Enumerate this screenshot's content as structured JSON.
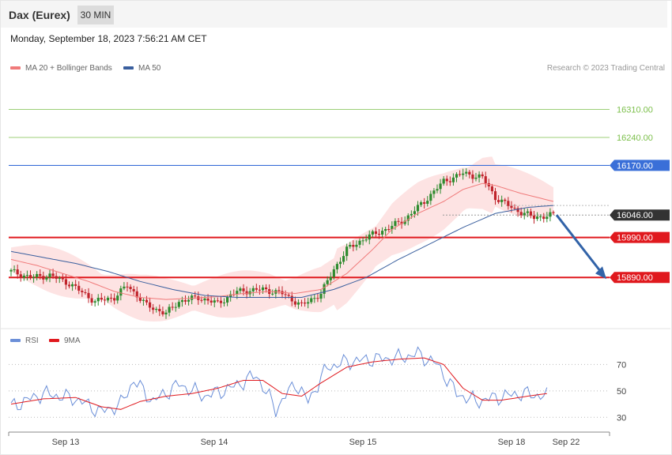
{
  "header": {
    "instrument": "Dax (Eurex)",
    "timeframe": "30 MIN"
  },
  "datetime": "Monday, September 18, 2023 7:56:21 AM CET",
  "legend": {
    "ma20": "MA 20 + Bollinger Bands",
    "ma50": "MA 50",
    "credit": "Research © 2023 Trading Central"
  },
  "colors": {
    "ma20": "#f07a7a",
    "ma50": "#3a5f9e",
    "band_fill": "#fde3e3",
    "bull": "#2e8b2e",
    "bear": "#c0242c",
    "resistance_green": "#7bbf4a",
    "pivot_blue": "#3a6fd8",
    "support_red": "#e0191e",
    "current_dark": "#333333",
    "arrow": "#3263a8",
    "rsi": "#6b8fd8",
    "rsi_ma": "#e0191e"
  },
  "chart_data": [
    {
      "type": "candlestick",
      "title": "Dax (Eurex)",
      "timeframe": "30 MIN",
      "ylim": [
        15770,
        16390
      ],
      "x_labels": [
        "Sep 13",
        "Sep 14",
        "Sep 15",
        "Sep 18",
        "Sep 22"
      ],
      "grid": false,
      "legend_position": "top-left",
      "levels": [
        {
          "label": "16310.00",
          "value": 16310,
          "kind": "resistance"
        },
        {
          "label": "16240.00",
          "value": 16240,
          "kind": "resistance"
        },
        {
          "label": "16170.00",
          "value": 16170,
          "kind": "pivot"
        },
        {
          "label": "16046.00",
          "value": 16046,
          "kind": "current"
        },
        {
          "label": "15990.00",
          "value": 15990,
          "kind": "support"
        },
        {
          "label": "15890.00",
          "value": 15890,
          "kind": "support"
        }
      ],
      "forecast_arrow": {
        "from": 16046,
        "to": 15890,
        "direction": "down"
      },
      "series": [
        {
          "name": "MA 20 + Bollinger Bands",
          "anchors": [
            [
              0,
              15935
            ],
            [
              8,
              15920
            ],
            [
              16,
              15900
            ],
            [
              24,
              15880
            ],
            [
              32,
              15855
            ],
            [
              40,
              15840
            ],
            [
              48,
              15835
            ],
            [
              56,
              15838
            ],
            [
              64,
              15842
            ],
            [
              72,
              15850
            ],
            [
              80,
              15855
            ],
            [
              88,
              15850
            ],
            [
              96,
              15860
            ],
            [
              104,
              15900
            ],
            [
              112,
              15960
            ],
            [
              118,
              16010
            ],
            [
              126,
              16050
            ],
            [
              134,
              16080
            ],
            [
              140,
              16110
            ],
            [
              146,
              16125
            ],
            [
              150,
              16120
            ],
            [
              158,
              16100
            ],
            [
              168,
              16080
            ]
          ]
        },
        {
          "name": "MA 50",
          "anchors": [
            [
              0,
              15955
            ],
            [
              10,
              15940
            ],
            [
              20,
              15925
            ],
            [
              30,
              15905
            ],
            [
              40,
              15880
            ],
            [
              50,
              15860
            ],
            [
              60,
              15845
            ],
            [
              70,
              15840
            ],
            [
              80,
              15840
            ],
            [
              90,
              15840
            ],
            [
              100,
              15860
            ],
            [
              110,
              15890
            ],
            [
              120,
              15935
            ],
            [
              130,
              15975
            ],
            [
              140,
              16015
            ],
            [
              150,
              16050
            ],
            [
              160,
              16065
            ],
            [
              168,
              16070
            ]
          ]
        }
      ]
    },
    {
      "type": "line",
      "title": "RSI",
      "ylim": [
        20,
        90
      ],
      "ticks": [
        70,
        50,
        30
      ],
      "series": [
        {
          "name": "RSI",
          "anchors": [
            [
              0,
              38
            ],
            [
              10,
              48
            ],
            [
              20,
              44
            ],
            [
              28,
              34
            ],
            [
              34,
              40
            ],
            [
              38,
              58
            ],
            [
              44,
              42
            ],
            [
              52,
              55
            ],
            [
              60,
              46
            ],
            [
              68,
              52
            ],
            [
              76,
              62
            ],
            [
              82,
              36
            ],
            [
              88,
              56
            ],
            [
              92,
              42
            ],
            [
              98,
              68
            ],
            [
              104,
              72
            ],
            [
              112,
              74
            ],
            [
              120,
              75
            ],
            [
              126,
              78
            ],
            [
              132,
              70
            ],
            [
              138,
              48
            ],
            [
              144,
              42
            ],
            [
              150,
              45
            ],
            [
              158,
              48
            ],
            [
              166,
              46
            ]
          ]
        },
        {
          "name": "9MA",
          "anchors": [
            [
              0,
              40
            ],
            [
              10,
              44
            ],
            [
              20,
              45
            ],
            [
              28,
              38
            ],
            [
              34,
              36
            ],
            [
              40,
              42
            ],
            [
              48,
              46
            ],
            [
              56,
              48
            ],
            [
              64,
              52
            ],
            [
              72,
              58
            ],
            [
              78,
              58
            ],
            [
              84,
              48
            ],
            [
              90,
              46
            ],
            [
              96,
              56
            ],
            [
              104,
              68
            ],
            [
              112,
              72
            ],
            [
              120,
              74
            ],
            [
              128,
              75
            ],
            [
              134,
              70
            ],
            [
              140,
              52
            ],
            [
              146,
              43
            ],
            [
              152,
              43
            ],
            [
              160,
              46
            ],
            [
              166,
              48
            ]
          ]
        }
      ]
    }
  ]
}
